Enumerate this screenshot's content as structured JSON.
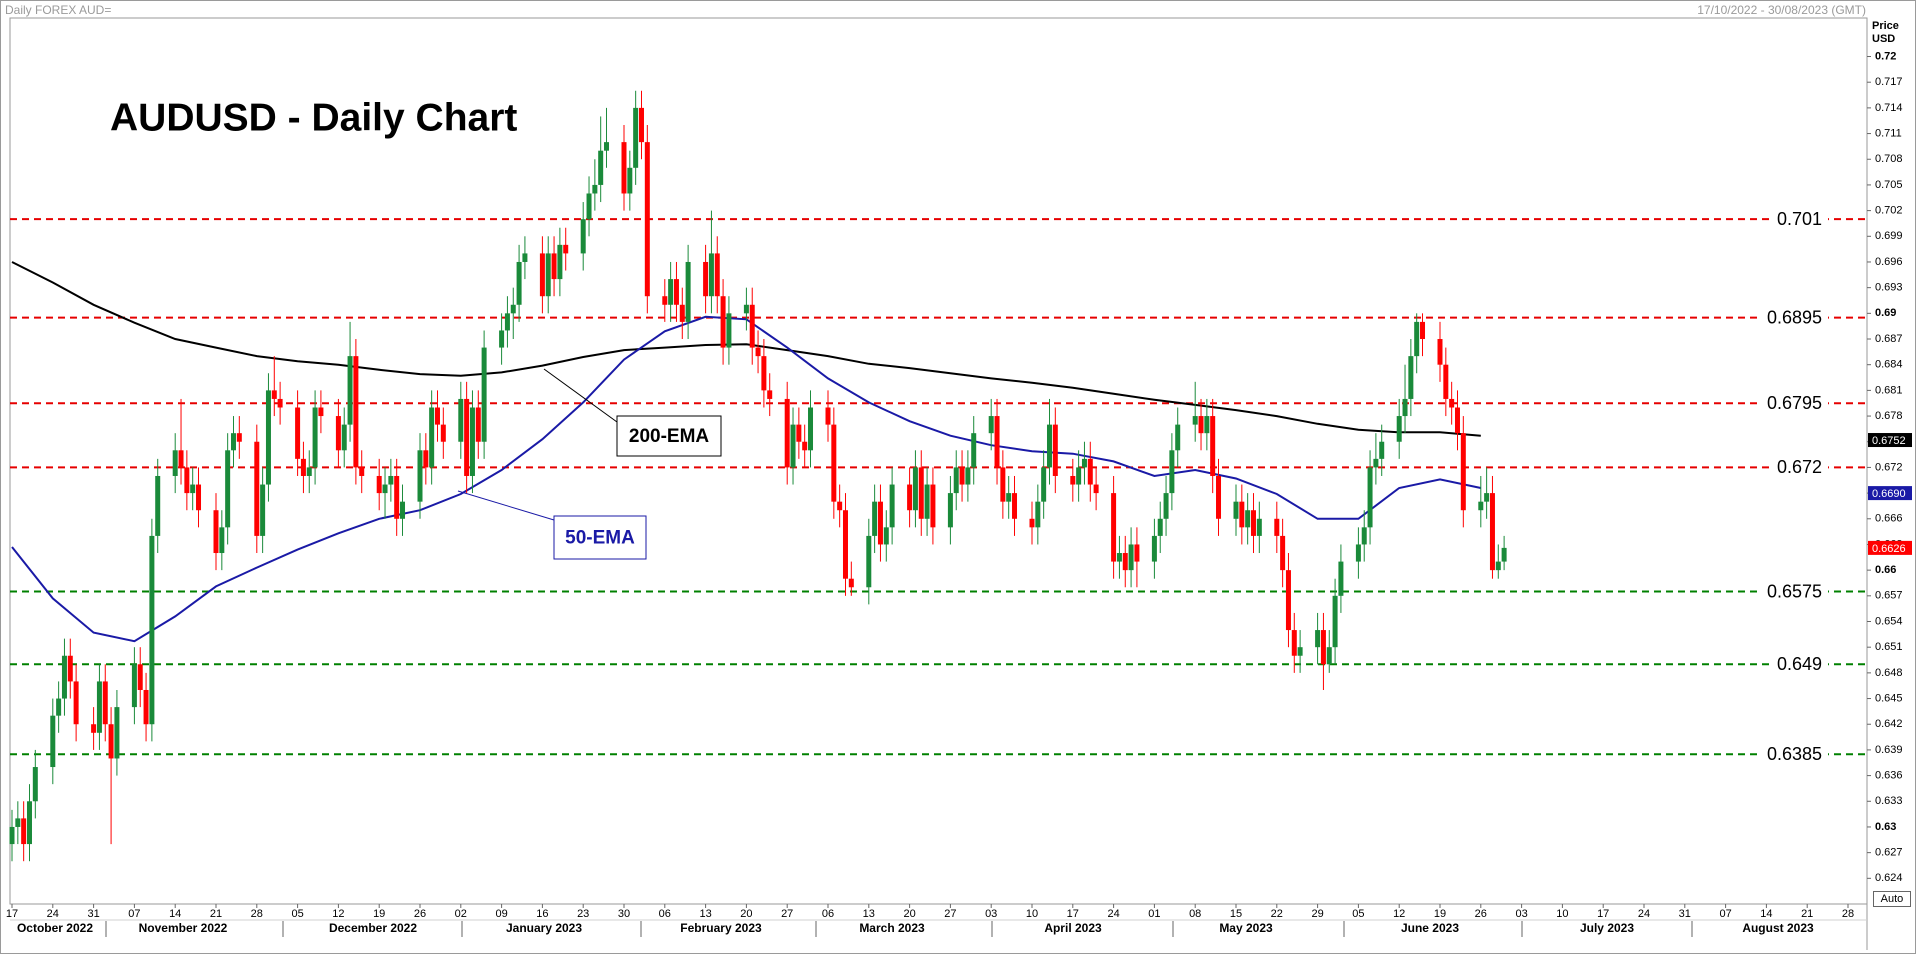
{
  "header": {
    "source": "Daily FOREX AUD=",
    "range": "17/10/2022 - 30/08/2023 (GMT)",
    "axis_title": "Price USD",
    "auto": "Auto"
  },
  "chart_data": {
    "type": "candlestick",
    "title": "AUDUSD - Daily Chart",
    "categories": [
      "17",
      "24",
      "31",
      "07",
      "14",
      "21",
      "28",
      "05",
      "12",
      "19",
      "26",
      "02",
      "09",
      "16",
      "23",
      "30",
      "06",
      "13",
      "20",
      "27",
      "06",
      "13",
      "20",
      "27",
      "03",
      "10",
      "17",
      "24",
      "01",
      "08",
      "15",
      "22",
      "29",
      "05",
      "12",
      "19",
      "26",
      "03",
      "10",
      "17",
      "24",
      "31",
      "07",
      "14",
      "21",
      "28"
    ],
    "months": [
      "October 2022",
      "November 2022",
      "December 2022",
      "January 2023",
      "February 2023",
      "March 2023",
      "April 2023",
      "May 2023",
      "June 2023",
      "July 2023",
      "August 2023"
    ],
    "up_color": "#1a8a3a",
    "down_color": "#ff0000",
    "candles": [
      [
        0.628,
        0.632,
        0.626,
        0.63
      ],
      [
        0.63,
        0.633,
        0.628,
        0.631
      ],
      [
        0.631,
        0.633,
        0.626,
        0.628
      ],
      [
        0.628,
        0.635,
        0.626,
        0.633
      ],
      [
        0.633,
        0.639,
        0.631,
        0.637
      ],
      [
        0.637,
        0.645,
        0.635,
        0.643
      ],
      [
        0.643,
        0.647,
        0.641,
        0.645
      ],
      [
        0.645,
        0.652,
        0.643,
        0.65
      ],
      [
        0.65,
        0.652,
        0.645,
        0.647
      ],
      [
        0.647,
        0.649,
        0.64,
        0.642
      ],
      [
        0.642,
        0.644,
        0.639,
        0.641
      ],
      [
        0.641,
        0.649,
        0.639,
        0.647
      ],
      [
        0.647,
        0.649,
        0.64,
        0.642
      ],
      [
        0.642,
        0.644,
        0.628,
        0.638
      ],
      [
        0.638,
        0.646,
        0.636,
        0.644
      ],
      [
        0.644,
        0.651,
        0.642,
        0.649
      ],
      [
        0.649,
        0.651,
        0.644,
        0.646
      ],
      [
        0.646,
        0.648,
        0.64,
        0.642
      ],
      [
        0.642,
        0.666,
        0.64,
        0.664
      ],
      [
        0.664,
        0.673,
        0.662,
        0.671
      ],
      [
        0.671,
        0.676,
        0.669,
        0.674
      ],
      [
        0.674,
        0.68,
        0.67,
        0.672
      ],
      [
        0.672,
        0.674,
        0.667,
        0.669
      ],
      [
        0.669,
        0.672,
        0.667,
        0.67
      ],
      [
        0.67,
        0.672,
        0.665,
        0.667
      ],
      [
        0.667,
        0.669,
        0.66,
        0.662
      ],
      [
        0.662,
        0.667,
        0.66,
        0.665
      ],
      [
        0.665,
        0.676,
        0.663,
        0.674
      ],
      [
        0.674,
        0.678,
        0.672,
        0.676
      ],
      [
        0.676,
        0.678,
        0.673,
        0.675
      ],
      [
        0.675,
        0.677,
        0.662,
        0.664
      ],
      [
        0.664,
        0.672,
        0.662,
        0.67
      ],
      [
        0.67,
        0.683,
        0.668,
        0.681
      ],
      [
        0.681,
        0.685,
        0.678,
        0.68
      ],
      [
        0.68,
        0.682,
        0.677,
        0.679
      ],
      [
        0.679,
        0.681,
        0.671,
        0.673
      ],
      [
        0.673,
        0.675,
        0.669,
        0.671
      ],
      [
        0.671,
        0.674,
        0.669,
        0.672
      ],
      [
        0.672,
        0.681,
        0.67,
        0.679
      ],
      [
        0.679,
        0.681,
        0.676,
        0.678
      ],
      [
        0.678,
        0.68,
        0.672,
        0.674
      ],
      [
        0.674,
        0.679,
        0.672,
        0.677
      ],
      [
        0.677,
        0.689,
        0.675,
        0.685
      ],
      [
        0.685,
        0.687,
        0.67,
        0.672
      ],
      [
        0.672,
        0.674,
        0.669,
        0.671
      ],
      [
        0.671,
        0.673,
        0.667,
        0.669
      ],
      [
        0.669,
        0.672,
        0.666,
        0.67
      ],
      [
        0.67,
        0.673,
        0.668,
        0.671
      ],
      [
        0.671,
        0.673,
        0.664,
        0.666
      ],
      [
        0.666,
        0.67,
        0.664,
        0.668
      ],
      [
        0.668,
        0.676,
        0.666,
        0.674
      ],
      [
        0.674,
        0.676,
        0.67,
        0.672
      ],
      [
        0.672,
        0.681,
        0.67,
        0.679
      ],
      [
        0.679,
        0.681,
        0.675,
        0.677
      ],
      [
        0.677,
        0.679,
        0.673,
        0.675
      ],
      [
        0.675,
        0.682,
        0.673,
        0.68
      ],
      [
        0.68,
        0.682,
        0.669,
        0.671
      ],
      [
        0.671,
        0.681,
        0.669,
        0.679
      ],
      [
        0.679,
        0.681,
        0.673,
        0.675
      ],
      [
        0.675,
        0.688,
        0.673,
        0.686
      ],
      [
        0.686,
        0.69,
        0.684,
        0.688
      ],
      [
        0.688,
        0.692,
        0.686,
        0.69
      ],
      [
        0.69,
        0.693,
        0.687,
        0.691
      ],
      [
        0.691,
        0.698,
        0.689,
        0.696
      ],
      [
        0.696,
        0.699,
        0.694,
        0.697
      ],
      [
        0.697,
        0.699,
        0.69,
        0.692
      ],
      [
        0.692,
        0.699,
        0.69,
        0.697
      ],
      [
        0.697,
        0.699,
        0.692,
        0.694
      ],
      [
        0.694,
        0.7,
        0.692,
        0.698
      ],
      [
        0.698,
        0.7,
        0.695,
        0.697
      ],
      [
        0.697,
        0.703,
        0.695,
        0.701
      ],
      [
        0.701,
        0.706,
        0.699,
        0.704
      ],
      [
        0.704,
        0.708,
        0.702,
        0.705
      ],
      [
        0.705,
        0.713,
        0.703,
        0.709
      ],
      [
        0.709,
        0.714,
        0.707,
        0.71
      ],
      [
        0.71,
        0.712,
        0.702,
        0.704
      ],
      [
        0.704,
        0.709,
        0.702,
        0.707
      ],
      [
        0.707,
        0.716,
        0.705,
        0.714
      ],
      [
        0.714,
        0.716,
        0.708,
        0.71
      ],
      [
        0.71,
        0.712,
        0.69,
        0.692
      ],
      [
        0.692,
        0.694,
        0.689,
        0.691
      ],
      [
        0.691,
        0.696,
        0.689,
        0.694
      ],
      [
        0.694,
        0.696,
        0.689,
        0.691
      ],
      [
        0.691,
        0.693,
        0.687,
        0.689
      ],
      [
        0.689,
        0.698,
        0.687,
        0.696
      ],
      [
        0.696,
        0.698,
        0.69,
        0.692
      ],
      [
        0.692,
        0.702,
        0.69,
        0.697
      ],
      [
        0.697,
        0.699,
        0.69,
        0.692
      ],
      [
        0.692,
        0.694,
        0.684,
        0.686
      ],
      [
        0.686,
        0.692,
        0.684,
        0.69
      ],
      [
        0.69,
        0.693,
        0.688,
        0.691
      ],
      [
        0.691,
        0.693,
        0.684,
        0.686
      ],
      [
        0.686,
        0.688,
        0.683,
        0.685
      ],
      [
        0.685,
        0.687,
        0.679,
        0.681
      ],
      [
        0.681,
        0.683,
        0.678,
        0.68
      ],
      [
        0.68,
        0.682,
        0.67,
        0.672
      ],
      [
        0.672,
        0.679,
        0.67,
        0.677
      ],
      [
        0.677,
        0.679,
        0.673,
        0.675
      ],
      [
        0.675,
        0.677,
        0.672,
        0.674
      ],
      [
        0.674,
        0.681,
        0.672,
        0.679
      ],
      [
        0.679,
        0.681,
        0.675,
        0.677
      ],
      [
        0.677,
        0.679,
        0.666,
        0.668
      ],
      [
        0.668,
        0.67,
        0.665,
        0.667
      ],
      [
        0.667,
        0.669,
        0.657,
        0.659
      ],
      [
        0.659,
        0.661,
        0.657,
        0.658
      ],
      [
        0.658,
        0.666,
        0.656,
        0.664
      ],
      [
        0.664,
        0.67,
        0.662,
        0.668
      ],
      [
        0.668,
        0.67,
        0.661,
        0.663
      ],
      [
        0.663,
        0.667,
        0.661,
        0.665
      ],
      [
        0.665,
        0.672,
        0.663,
        0.67
      ],
      [
        0.67,
        0.672,
        0.665,
        0.667
      ],
      [
        0.667,
        0.674,
        0.665,
        0.672
      ],
      [
        0.672,
        0.674,
        0.664,
        0.666
      ],
      [
        0.666,
        0.672,
        0.664,
        0.67
      ],
      [
        0.67,
        0.672,
        0.663,
        0.665
      ],
      [
        0.665,
        0.671,
        0.663,
        0.669
      ],
      [
        0.669,
        0.674,
        0.667,
        0.672
      ],
      [
        0.672,
        0.674,
        0.668,
        0.67
      ],
      [
        0.67,
        0.674,
        0.668,
        0.672
      ],
      [
        0.672,
        0.678,
        0.67,
        0.676
      ],
      [
        0.676,
        0.68,
        0.674,
        0.678
      ],
      [
        0.678,
        0.68,
        0.67,
        0.672
      ],
      [
        0.672,
        0.674,
        0.666,
        0.668
      ],
      [
        0.668,
        0.671,
        0.666,
        0.669
      ],
      [
        0.669,
        0.671,
        0.664,
        0.666
      ],
      [
        0.666,
        0.668,
        0.663,
        0.665
      ],
      [
        0.665,
        0.67,
        0.663,
        0.668
      ],
      [
        0.668,
        0.674,
        0.666,
        0.672
      ],
      [
        0.672,
        0.68,
        0.67,
        0.677
      ],
      [
        0.677,
        0.679,
        0.669,
        0.671
      ],
      [
        0.671,
        0.673,
        0.668,
        0.67
      ],
      [
        0.67,
        0.674,
        0.668,
        0.672
      ],
      [
        0.672,
        0.675,
        0.67,
        0.673
      ],
      [
        0.673,
        0.675,
        0.668,
        0.67
      ],
      [
        0.67,
        0.672,
        0.667,
        0.669
      ],
      [
        0.669,
        0.671,
        0.659,
        0.661
      ],
      [
        0.661,
        0.664,
        0.659,
        0.662
      ],
      [
        0.662,
        0.664,
        0.658,
        0.66
      ],
      [
        0.66,
        0.665,
        0.658,
        0.663
      ],
      [
        0.663,
        0.665,
        0.658,
        0.661
      ],
      [
        0.661,
        0.666,
        0.659,
        0.664
      ],
      [
        0.664,
        0.668,
        0.662,
        0.666
      ],
      [
        0.666,
        0.671,
        0.664,
        0.669
      ],
      [
        0.669,
        0.676,
        0.667,
        0.674
      ],
      [
        0.674,
        0.679,
        0.672,
        0.677
      ],
      [
        0.677,
        0.682,
        0.675,
        0.678
      ],
      [
        0.678,
        0.68,
        0.674,
        0.676
      ],
      [
        0.676,
        0.68,
        0.674,
        0.678
      ],
      [
        0.678,
        0.68,
        0.669,
        0.671
      ],
      [
        0.671,
        0.673,
        0.664,
        0.666
      ],
      [
        0.666,
        0.67,
        0.664,
        0.668
      ],
      [
        0.668,
        0.67,
        0.663,
        0.665
      ],
      [
        0.665,
        0.669,
        0.663,
        0.667
      ],
      [
        0.667,
        0.669,
        0.662,
        0.664
      ],
      [
        0.664,
        0.668,
        0.662,
        0.666
      ],
      [
        0.666,
        0.668,
        0.662,
        0.664
      ],
      [
        0.664,
        0.666,
        0.658,
        0.66
      ],
      [
        0.66,
        0.662,
        0.651,
        0.653
      ],
      [
        0.653,
        0.655,
        0.648,
        0.65
      ],
      [
        0.65,
        0.653,
        0.648,
        0.651
      ],
      [
        0.651,
        0.655,
        0.649,
        0.653
      ],
      [
        0.653,
        0.655,
        0.646,
        0.649
      ],
      [
        0.649,
        0.653,
        0.648,
        0.651
      ],
      [
        0.651,
        0.659,
        0.649,
        0.657
      ],
      [
        0.657,
        0.663,
        0.655,
        0.661
      ],
      [
        0.661,
        0.665,
        0.659,
        0.663
      ],
      [
        0.663,
        0.667,
        0.661,
        0.665
      ],
      [
        0.665,
        0.674,
        0.663,
        0.672
      ],
      [
        0.672,
        0.676,
        0.67,
        0.673
      ],
      [
        0.673,
        0.677,
        0.671,
        0.675
      ],
      [
        0.675,
        0.68,
        0.673,
        0.678
      ],
      [
        0.678,
        0.684,
        0.676,
        0.68
      ],
      [
        0.68,
        0.687,
        0.678,
        0.685
      ],
      [
        0.685,
        0.69,
        0.683,
        0.689
      ],
      [
        0.689,
        0.69,
        0.685,
        0.687
      ],
      [
        0.687,
        0.689,
        0.682,
        0.684
      ],
      [
        0.684,
        0.686,
        0.678,
        0.68
      ],
      [
        0.68,
        0.682,
        0.677,
        0.679
      ],
      [
        0.679,
        0.681,
        0.674,
        0.676
      ],
      [
        0.676,
        0.678,
        0.665,
        0.667
      ],
      [
        0.667,
        0.671,
        0.665,
        0.668
      ],
      [
        0.668,
        0.672,
        0.666,
        0.669
      ],
      [
        0.669,
        0.671,
        0.659,
        0.66
      ],
      [
        0.66,
        0.663,
        0.659,
        0.661
      ],
      [
        0.661,
        0.664,
        0.66,
        0.6626
      ]
    ],
    "series": [
      {
        "name": "200-EMA",
        "color": "#000000",
        "values": [
          0.696,
          0.6936,
          0.691,
          0.6889,
          0.687,
          0.686,
          0.685,
          0.6844,
          0.684,
          0.6834,
          0.6829,
          0.6827,
          0.6831,
          0.6839,
          0.6849,
          0.6857,
          0.686,
          0.6863,
          0.6864,
          0.6857,
          0.685,
          0.6841,
          0.6836,
          0.683,
          0.6824,
          0.6819,
          0.6813,
          0.6806,
          0.6799,
          0.6793,
          0.6787,
          0.678,
          0.6771,
          0.6764,
          0.6761,
          0.6761,
          0.6757,
          null,
          null,
          null,
          null,
          null,
          null,
          null,
          null,
          null
        ]
      },
      {
        "name": "50-EMA",
        "color": "#1a1aa6",
        "values": [
          0.6627,
          0.6567,
          0.6527,
          0.6517,
          0.6546,
          0.6581,
          0.6603,
          0.6624,
          0.6643,
          0.666,
          0.667,
          0.6689,
          0.6717,
          0.6753,
          0.6796,
          0.6846,
          0.6879,
          0.6896,
          0.6893,
          0.686,
          0.6824,
          0.6796,
          0.6774,
          0.6757,
          0.6746,
          0.6739,
          0.6736,
          0.6727,
          0.671,
          0.6717,
          0.6707,
          0.6689,
          0.666,
          0.666,
          0.6696,
          0.6706,
          0.6696,
          null,
          null,
          null,
          null,
          null,
          null,
          null,
          null,
          null
        ]
      }
    ],
    "levels": [
      {
        "value": 0.701,
        "color": "#e60000"
      },
      {
        "value": 0.6895,
        "color": "#e60000"
      },
      {
        "value": 0.6795,
        "color": "#e60000"
      },
      {
        "value": 0.672,
        "color": "#e60000"
      },
      {
        "value": 0.6575,
        "color": "#008000"
      },
      {
        "value": 0.649,
        "color": "#008000"
      },
      {
        "value": 0.6385,
        "color": "#008000"
      }
    ],
    "price_tags": [
      {
        "value": 0.6752,
        "color": "#000000"
      },
      {
        "value": 0.669,
        "label": "0.6690",
        "color": "#1a1aa6"
      },
      {
        "value": 0.6626,
        "color": "#ff0000"
      }
    ],
    "ylim": [
      0.621,
      0.7245
    ],
    "yticks": [
      0.72,
      0.717,
      0.714,
      0.711,
      0.708,
      0.705,
      0.702,
      0.699,
      0.696,
      0.693,
      0.69,
      0.687,
      0.684,
      0.681,
      0.678,
      0.675,
      0.672,
      0.669,
      0.666,
      0.663,
      0.66,
      0.657,
      0.654,
      0.651,
      0.648,
      0.645,
      0.642,
      0.639,
      0.636,
      0.633,
      0.63,
      0.627,
      0.624
    ]
  }
}
